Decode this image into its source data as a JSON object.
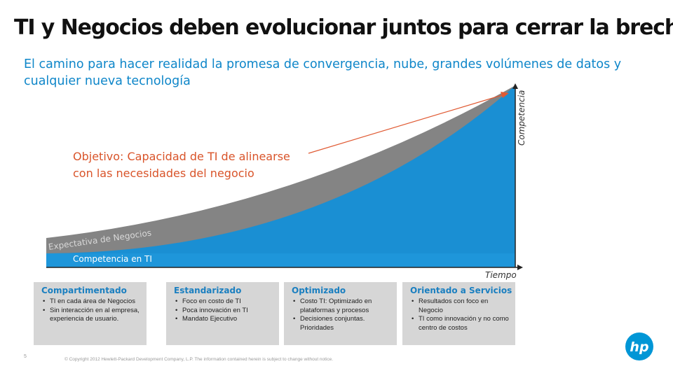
{
  "slide": {
    "title": "TI y Negocios deben evolucionar juntos para cerrar la brecha",
    "subtitle": "El camino para hacer realidad la promesa de convergencia, nube, grandes volúmenes de datos y cualquier nueva tecnología"
  },
  "chart": {
    "y_axis_label": "Competencia",
    "x_axis_label": "Tiempo",
    "band_labels": {
      "expectation": "Expectativa de Negocios",
      "competence": "Competencia en TI"
    },
    "callout": {
      "line1": "Objetivo: Capacidad de TI de alinearse",
      "line2": "con las necesidades del negocio"
    },
    "colors": {
      "blue": "#1A8FD3",
      "grey": "#848484",
      "arrow": "#E05A33",
      "axis": "#222222"
    }
  },
  "stages": [
    {
      "title": "Compartimentado",
      "bullets": [
        "TI en cada área de Negocios",
        "Sin interacción en al empresa, experiencia de usuario."
      ]
    },
    {
      "title": "Estandarizado",
      "bullets": [
        "Foco en costo de TI",
        "Poca innovación en TI",
        "Mandato Ejecutivo"
      ]
    },
    {
      "title": "Optimizado",
      "bullets": [
        "Costo TI: Optimizado en plataformas y procesos",
        "Decisiones conjuntas. Prioridades"
      ]
    },
    {
      "title": "Orientado a Servicios",
      "bullets": [
        "Resultados con foco en Negocio",
        "TI como innovación y no como centro de costos"
      ]
    }
  ],
  "footer": {
    "page_number": "5",
    "copyright": "© Copyright 2012 Hewlett-Packard Development Company, L.P. The information contained herein is subject to change without notice."
  },
  "logo": {
    "text": "hp",
    "name": "hp-logo-icon",
    "color": "#0096D6"
  }
}
